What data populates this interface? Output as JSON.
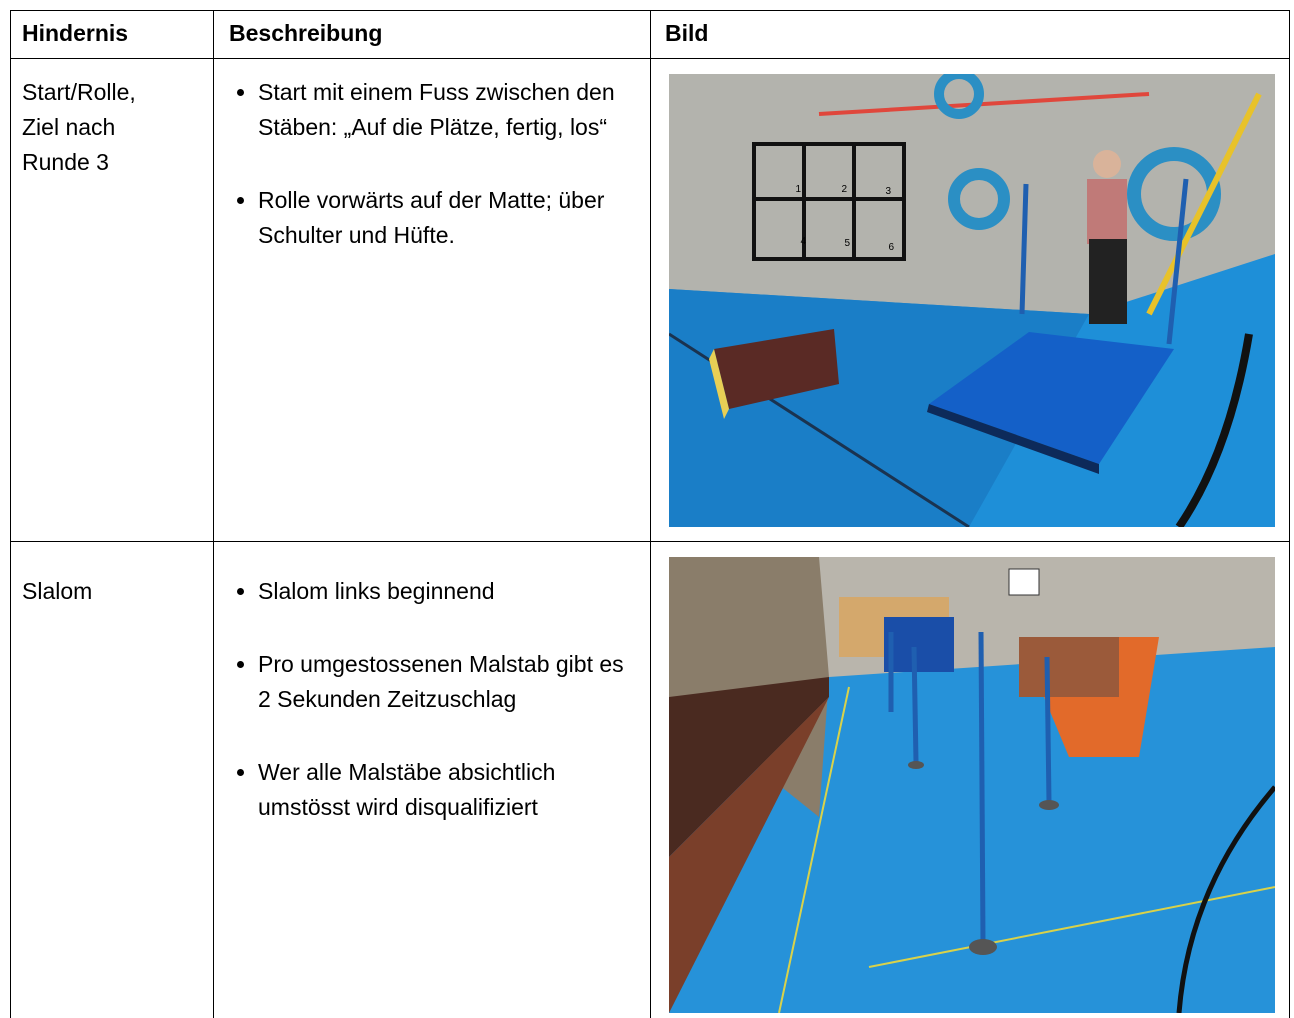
{
  "table": {
    "header": [
      "Hindernis",
      "Beschreibung",
      "Bild"
    ],
    "rows": [
      {
        "name": "Start/Rolle, Ziel nach Runde 3",
        "items": [
          "Start mit einem Fuss zwischen den Stäben: „Auf die Plätze, fertig, los“",
          "Rolle vorwärts auf der Matte; über Schulter und Hüfte."
        ],
        "labels": [
          "1",
          "2",
          "3",
          "4",
          "5",
          "6"
        ]
      },
      {
        "name": "Slalom",
        "items": [
          "Slalom links beginnend",
          "Pro umgestossenen Malstab gibt es 2 Sekunden Zeitzuschlag",
          "Wer alle Malstäbe absichtlich umstösst wird disqualifiziert"
        ]
      }
    ]
  }
}
